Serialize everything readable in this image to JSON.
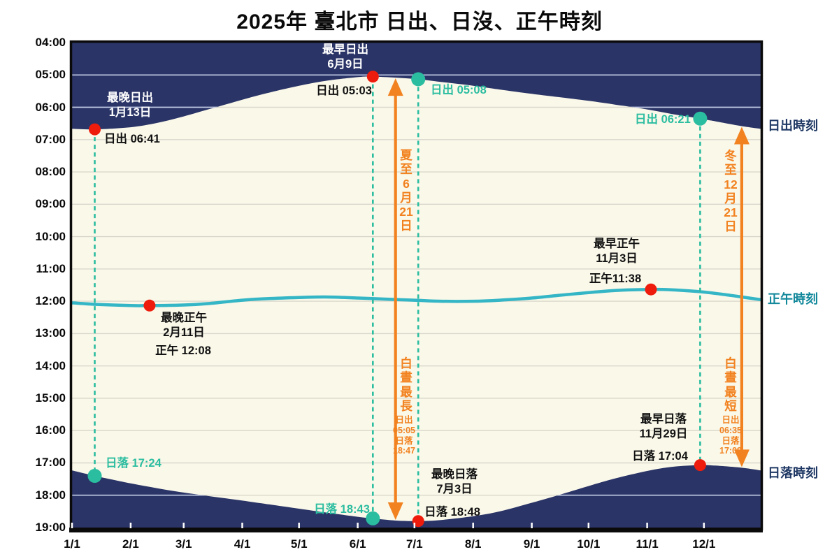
{
  "title": "2025年 臺北市 日出、日沒、正午時刻",
  "colors": {
    "night_fill": "#2a3467",
    "day_fill": "#faf8e9",
    "noon_line": "#35b6c6",
    "teal_marker": "#2bbda0",
    "orange": "#f28220",
    "red_marker": "#ee1c0c",
    "grid_day": "#d9d7cb",
    "grid_night": "#c3cce6",
    "axis_black": "#0a0a0a",
    "label_navy": "#1f3864",
    "label_teal": "#12889b"
  },
  "annotations": {
    "latest_sunrise_title": "最晚日出\n1月13日",
    "latest_sunrise_sunrise": "日出 06:41",
    "latest_sunrise_sunset": "日落 17:24",
    "earliest_sunrise_title": "最早日出\n6月9日",
    "earliest_sunrise_sunrise": "日出 05:03",
    "earliest_sunrise_sunset": "日落 18:43",
    "latest_sunset_title": "最晚日落\n7月3日",
    "latest_sunset_sunset": "日落 18:48",
    "latest_sunset_sunrise": "日出 05:08",
    "earliest_sunset_title": "最早日落\n11月29日",
    "earliest_sunset_sunset": "日落 17:04",
    "earliest_sunset_sunrise": "日出 06:21",
    "latest_noon_title": "最晚正午\n2月11日",
    "latest_noon_value": "正午 12:08",
    "earliest_noon_title": "最早正午\n11月3日",
    "earliest_noon_value": "正午11:38",
    "summer_solstice_vertical": "夏\n至\n6\n月\n21\n日",
    "summer_daylight_vertical": "白\n晝\n最\n長",
    "summer_daylight_detail": "日出\n05:05\n日落\n18:47",
    "winter_solstice_vertical": "冬\n至\n12\n月\n21\n日",
    "winter_daylight_vertical": "白\n晝\n最\n短",
    "winter_daylight_detail": "日出\n06:35\n日落\n17:09",
    "side_sunrise": "日出時刻",
    "side_noon": "正午時刻",
    "side_sunset": "日落時刻"
  },
  "chart_data": {
    "type": "area",
    "title": "2025年 臺北市 日出、日沒、正午時刻",
    "x_ticks": [
      "1/1",
      "2/1",
      "3/1",
      "4/1",
      "5/1",
      "6/1",
      "7/1",
      "8/1",
      "9/1",
      "10/1",
      "11/1",
      "12/1"
    ],
    "y_ticks": [
      "04:00",
      "05:00",
      "06:00",
      "07:00",
      "08:00",
      "09:00",
      "10:00",
      "11:00",
      "12:00",
      "13:00",
      "14:00",
      "15:00",
      "16:00",
      "17:00",
      "18:00",
      "19:00"
    ],
    "y_axis_range": [
      "04:00",
      "19:00"
    ],
    "x_axis_range": [
      "1/1",
      "12/31"
    ],
    "grid": true,
    "series": [
      {
        "name": "sunrise",
        "points": [
          [
            "1/1",
            "06:40"
          ],
          [
            "1/13",
            "06:41"
          ],
          [
            "2/1",
            "06:37"
          ],
          [
            "2/15",
            "06:29"
          ],
          [
            "3/1",
            "06:17"
          ],
          [
            "3/15",
            "06:03"
          ],
          [
            "4/1",
            "05:46"
          ],
          [
            "4/15",
            "05:33"
          ],
          [
            "5/1",
            "05:20"
          ],
          [
            "5/15",
            "05:11"
          ],
          [
            "6/1",
            "05:04"
          ],
          [
            "6/9",
            "05:03"
          ],
          [
            "6/21",
            "05:05"
          ],
          [
            "7/3",
            "05:08"
          ],
          [
            "7/15",
            "05:13"
          ],
          [
            "8/1",
            "05:20"
          ],
          [
            "8/15",
            "05:27"
          ],
          [
            "9/1",
            "05:35"
          ],
          [
            "9/15",
            "05:41"
          ],
          [
            "10/1",
            "05:48"
          ],
          [
            "10/15",
            "05:55"
          ],
          [
            "11/1",
            "06:04"
          ],
          [
            "11/15",
            "06:13"
          ],
          [
            "11/29",
            "06:21"
          ],
          [
            "12/7",
            "06:26"
          ],
          [
            "12/21",
            "06:35"
          ],
          [
            "12/31",
            "06:40"
          ]
        ]
      },
      {
        "name": "noon",
        "points": [
          [
            "1/1",
            "12:03"
          ],
          [
            "1/15",
            "12:06"
          ],
          [
            "2/1",
            "12:08"
          ],
          [
            "2/11",
            "12:08"
          ],
          [
            "3/1",
            "12:07"
          ],
          [
            "3/15",
            "12:04"
          ],
          [
            "4/1",
            "11:58"
          ],
          [
            "4/15",
            "11:55"
          ],
          [
            "5/1",
            "11:53"
          ],
          [
            "5/15",
            "11:52"
          ],
          [
            "6/1",
            "11:54"
          ],
          [
            "6/15",
            "11:56"
          ],
          [
            "7/1",
            "11:58"
          ],
          [
            "7/15",
            "12:00"
          ],
          [
            "8/1",
            "12:00"
          ],
          [
            "8/15",
            "11:58"
          ],
          [
            "9/1",
            "11:54"
          ],
          [
            "9/15",
            "11:49"
          ],
          [
            "10/1",
            "11:44"
          ],
          [
            "10/15",
            "11:40"
          ],
          [
            "11/3",
            "11:38"
          ],
          [
            "11/15",
            "11:39"
          ],
          [
            "12/1",
            "11:43"
          ],
          [
            "12/15",
            "11:49"
          ],
          [
            "12/21",
            "11:52"
          ],
          [
            "12/31",
            "11:57"
          ]
        ]
      },
      {
        "name": "sunset",
        "points": [
          [
            "1/1",
            "17:14"
          ],
          [
            "1/13",
            "17:24"
          ],
          [
            "2/1",
            "17:38"
          ],
          [
            "2/15",
            "17:47"
          ],
          [
            "3/1",
            "17:55"
          ],
          [
            "3/15",
            "18:02"
          ],
          [
            "4/1",
            "18:10"
          ],
          [
            "4/15",
            "18:17"
          ],
          [
            "5/1",
            "18:25"
          ],
          [
            "5/15",
            "18:32"
          ],
          [
            "6/1",
            "18:40"
          ],
          [
            "6/9",
            "18:43"
          ],
          [
            "6/21",
            "18:47"
          ],
          [
            "7/3",
            "18:48"
          ],
          [
            "7/15",
            "18:46"
          ],
          [
            "8/1",
            "18:39"
          ],
          [
            "8/15",
            "18:30"
          ],
          [
            "9/1",
            "18:14"
          ],
          [
            "9/15",
            "18:00"
          ],
          [
            "10/1",
            "17:43"
          ],
          [
            "10/15",
            "17:29"
          ],
          [
            "11/1",
            "17:15"
          ],
          [
            "11/15",
            "17:07"
          ],
          [
            "11/29",
            "17:04"
          ],
          [
            "12/7",
            "17:05"
          ],
          [
            "12/21",
            "17:09"
          ],
          [
            "12/31",
            "17:14"
          ]
        ]
      }
    ],
    "events": {
      "latest_sunrise": {
        "date": "1/13",
        "sunrise": "06:41",
        "sunset": "17:24"
      },
      "earliest_sunrise": {
        "date": "6/9",
        "sunrise": "05:03",
        "sunset": "18:43"
      },
      "latest_sunset": {
        "date": "7/3",
        "sunrise": "05:08",
        "sunset": "18:48"
      },
      "earliest_sunset": {
        "date": "11/29",
        "sunrise": "06:21",
        "sunset": "17:04"
      },
      "latest_noon": {
        "date": "2/11",
        "noon": "12:08"
      },
      "earliest_noon": {
        "date": "11/3",
        "noon": "11:38"
      },
      "summer_solstice": {
        "date": "6/21",
        "sunrise": "05:05",
        "sunset": "18:47"
      },
      "winter_solstice": {
        "date": "12/21",
        "sunrise": "06:35",
        "sunset": "17:09"
      }
    }
  }
}
